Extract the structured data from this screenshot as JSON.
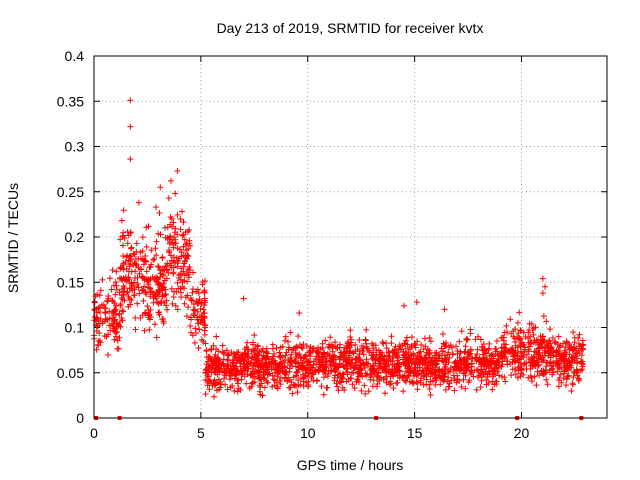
{
  "chart_data": {
    "type": "scatter",
    "title": "Day 213 of 2019, SRMTID for receiver kvtx",
    "xlabel": "GPS time / hours",
    "ylabel": "SRMTID / TECUs",
    "xlim": [
      0,
      24
    ],
    "ylim": [
      0,
      0.4
    ],
    "x_ticks": [
      0,
      5,
      10,
      15,
      20
    ],
    "y_ticks": [
      0,
      0.05,
      0.1,
      0.15,
      0.2,
      0.25,
      0.3,
      0.35,
      0.4
    ],
    "x_tick_labels": [
      "0",
      "5",
      "10",
      "15",
      "20"
    ],
    "y_tick_labels": [
      "0",
      "0.05",
      "0.1",
      "0.15",
      "0.2",
      "0.25",
      "0.3",
      "0.35",
      "0.4"
    ],
    "grid": true,
    "marker": "plus",
    "color": "#ff0000",
    "series_profile": [
      {
        "x_start": 0.0,
        "x_end": 1.2,
        "mean": 0.11,
        "spread": 0.035,
        "count": 110
      },
      {
        "x_start": 1.2,
        "x_end": 2.3,
        "mean": 0.16,
        "spread": 0.045,
        "count": 120
      },
      {
        "x_start": 2.3,
        "x_end": 3.3,
        "mean": 0.15,
        "spread": 0.05,
        "count": 120
      },
      {
        "x_start": 3.3,
        "x_end": 4.5,
        "mean": 0.17,
        "spread": 0.045,
        "count": 130
      },
      {
        "x_start": 4.5,
        "x_end": 5.2,
        "mean": 0.12,
        "spread": 0.035,
        "count": 70
      },
      {
        "x_start": 5.2,
        "x_end": 7.0,
        "mean": 0.055,
        "spread": 0.02,
        "count": 200
      },
      {
        "x_start": 7.0,
        "x_end": 10.0,
        "mean": 0.058,
        "spread": 0.022,
        "count": 330
      },
      {
        "x_start": 10.0,
        "x_end": 14.0,
        "mean": 0.06,
        "spread": 0.022,
        "count": 440
      },
      {
        "x_start": 14.0,
        "x_end": 19.0,
        "mean": 0.06,
        "spread": 0.022,
        "count": 540
      },
      {
        "x_start": 19.0,
        "x_end": 21.5,
        "mean": 0.072,
        "spread": 0.025,
        "count": 270
      },
      {
        "x_start": 21.5,
        "x_end": 22.9,
        "mean": 0.065,
        "spread": 0.022,
        "count": 150
      }
    ],
    "outliers": [
      {
        "x": 1.7,
        "y": 0.351
      },
      {
        "x": 1.7,
        "y": 0.322
      },
      {
        "x": 1.7,
        "y": 0.286
      },
      {
        "x": 3.9,
        "y": 0.273
      },
      {
        "x": 3.6,
        "y": 0.262
      },
      {
        "x": 3.1,
        "y": 0.255
      },
      {
        "x": 3.8,
        "y": 0.248
      },
      {
        "x": 2.1,
        "y": 0.238
      },
      {
        "x": 2.9,
        "y": 0.233
      },
      {
        "x": 3.5,
        "y": 0.243
      },
      {
        "x": 21.0,
        "y": 0.154
      },
      {
        "x": 21.1,
        "y": 0.145
      },
      {
        "x": 21.0,
        "y": 0.138
      },
      {
        "x": 7.0,
        "y": 0.132
      },
      {
        "x": 15.1,
        "y": 0.128
      },
      {
        "x": 14.5,
        "y": 0.124
      },
      {
        "x": 16.4,
        "y": 0.12
      },
      {
        "x": 9.6,
        "y": 0.116
      }
    ],
    "baseline_markers_x": [
      0.1,
      1.2,
      13.2,
      19.8,
      22.8
    ]
  }
}
